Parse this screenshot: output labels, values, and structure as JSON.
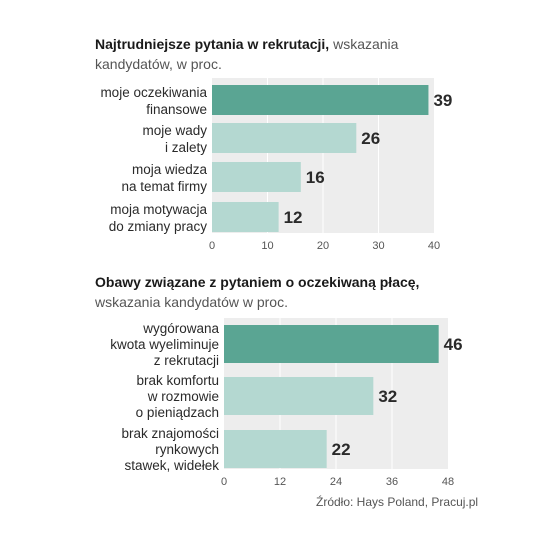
{
  "colors": {
    "highlight_bar": "#5aa593",
    "bar": "#b4d8d1",
    "plot_bg": "#ededed",
    "grid": "#ffffff"
  },
  "chart_data": [
    {
      "type": "bar",
      "orientation": "horizontal",
      "title_bold": "Najtrudniejsze pytania w rekrutacji,",
      "title_rest": " wskazania kandydatów, w proc.",
      "categories": [
        [
          "moje oczekiwania",
          "finansowe"
        ],
        [
          "moje wady",
          "i zalety"
        ],
        [
          "moja wiedza",
          "na temat firmy"
        ],
        [
          "moja motywacja",
          "do zmiany pracy"
        ]
      ],
      "values": [
        39,
        26,
        16,
        12
      ],
      "value_labels": [
        "39",
        "26",
        "16",
        "12"
      ],
      "ticks": [
        0,
        10,
        20,
        30,
        40
      ],
      "tick_labels": [
        "0",
        "10",
        "20",
        "30",
        "40"
      ],
      "xlim": [
        0,
        40
      ],
      "highlight_index": 0,
      "grid": true
    },
    {
      "type": "bar",
      "orientation": "horizontal",
      "title_bold": "Obawy związane z pytaniem o oczekiwaną płacę,",
      "title_rest": " wskazania kandydatów w proc.",
      "categories": [
        [
          "wygórowana",
          "kwota wyeliminuje",
          "z rekrutacji"
        ],
        [
          "brak komfortu",
          "w rozmowie",
          "o pieniądzach"
        ],
        [
          "brak znajomości",
          "rynkowych",
          "stawek, widełek"
        ]
      ],
      "values": [
        46,
        32,
        22
      ],
      "value_labels": [
        "46",
        "32",
        "22"
      ],
      "ticks": [
        0,
        12,
        24,
        36,
        48
      ],
      "tick_labels": [
        "0",
        "12",
        "24",
        "36",
        "48"
      ],
      "xlim": [
        0,
        48
      ],
      "highlight_index": 0,
      "grid": true
    }
  ],
  "source": "Źródło: Hays Poland, Pracuj.pl"
}
